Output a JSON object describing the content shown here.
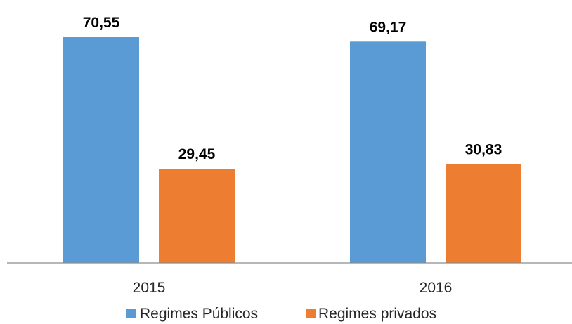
{
  "chart_data": {
    "type": "bar",
    "categories": [
      "2015",
      "2016"
    ],
    "series": [
      {
        "name": "Regimes Públicos",
        "values": [
          70.55,
          69.17
        ],
        "labels": [
          "70,55",
          "69,17"
        ],
        "color": "#5B9BD5"
      },
      {
        "name": "Regimes privados",
        "values": [
          29.45,
          30.83
        ],
        "labels": [
          "29,45",
          "30,83"
        ],
        "color": "#ED7D31"
      }
    ],
    "ylim": [
      0,
      80
    ],
    "grid": false,
    "legend_position": "bottom"
  }
}
